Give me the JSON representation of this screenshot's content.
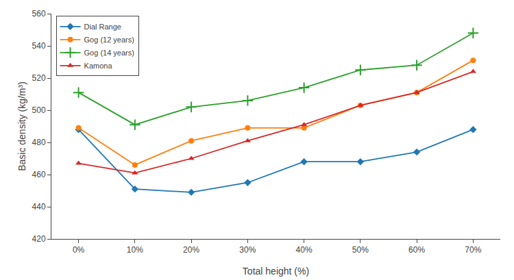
{
  "chart_data": {
    "type": "line",
    "categories": [
      "0%",
      "10%",
      "20%",
      "30%",
      "40%",
      "50%",
      "60%",
      "70%"
    ],
    "series": [
      {
        "name": "Dial Range",
        "values": [
          488,
          451,
          449,
          455,
          468,
          468,
          474,
          488
        ],
        "marker": "diamond"
      },
      {
        "name": "Gog (12 years)",
        "values": [
          489,
          466,
          481,
          489,
          489,
          503,
          511,
          531
        ],
        "marker": "circle"
      },
      {
        "name": "Gog (14 years)",
        "values": [
          511,
          491,
          502,
          506,
          514,
          525,
          528,
          548
        ],
        "marker": "plus"
      },
      {
        "name": "Kamona",
        "values": [
          467,
          461,
          470,
          481,
          491,
          503,
          511,
          524
        ],
        "marker": "triangle"
      }
    ],
    "xlabel": "Total height (%)",
    "ylabel": "Basic density (kg/m³)",
    "ylim": [
      420,
      560
    ],
    "yticks": [
      420,
      440,
      460,
      480,
      500,
      520,
      540,
      560
    ],
    "grid": false,
    "legend": "upper left"
  }
}
